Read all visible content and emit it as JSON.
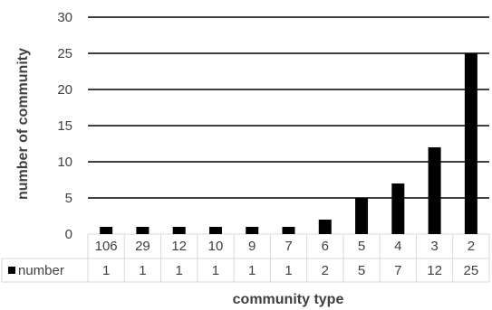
{
  "chart_data": {
    "type": "bar",
    "title": "",
    "xlabel": "community type",
    "ylabel": "number of community",
    "ylim": [
      0,
      30
    ],
    "yticks": [
      "0",
      "5",
      "10",
      "15",
      "20",
      "25",
      "30"
    ],
    "categories": [
      "106",
      "29",
      "12",
      "10",
      "9",
      "7",
      "6",
      "5",
      "4",
      "3",
      "2"
    ],
    "series": [
      {
        "name": "number",
        "values": [
          1,
          1,
          1,
          1,
          1,
          1,
          2,
          5,
          7,
          12,
          25
        ],
        "color": "#000000"
      }
    ],
    "grid": true,
    "legend": "data table",
    "data_table": true
  },
  "colors": {
    "grid": "#000000",
    "table_border": "#d9d9d9",
    "bar": "#000000",
    "text": "#404040"
  }
}
